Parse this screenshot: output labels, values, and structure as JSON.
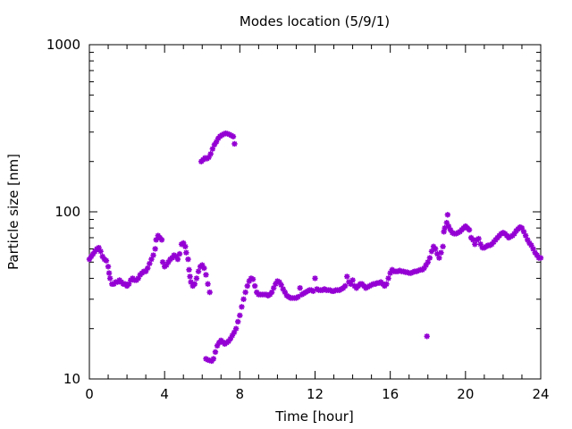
{
  "chart_data": {
    "type": "scatter",
    "title": "Modes location (5/9/1)",
    "xlabel": "Time [hour]",
    "ylabel": "Particle size [nm]",
    "xlim": [
      0,
      24
    ],
    "ylim": [
      10,
      1000
    ],
    "yscale": "log",
    "grid": false,
    "x_ticks": [
      0,
      4,
      8,
      12,
      16,
      20,
      24
    ],
    "x_tick_labels": [
      "0",
      "4",
      "8",
      "12",
      "16",
      "20",
      "24"
    ],
    "y_ticks": [
      10,
      100,
      1000
    ],
    "y_tick_labels": [
      "10",
      "100",
      "1000"
    ],
    "marker_color": "#9400d3",
    "series": [
      {
        "points": [
          [
            0.0,
            52
          ],
          [
            0.1,
            54
          ],
          [
            0.2,
            56
          ],
          [
            0.3,
            58
          ],
          [
            0.4,
            60
          ],
          [
            0.5,
            61
          ],
          [
            0.6,
            58
          ],
          [
            0.7,
            54
          ],
          [
            0.8,
            52
          ],
          [
            0.9,
            51
          ],
          [
            1.0,
            47
          ],
          [
            1.05,
            43
          ],
          [
            1.1,
            40
          ],
          [
            1.2,
            37
          ],
          [
            1.3,
            37
          ],
          [
            1.4,
            38
          ],
          [
            1.5,
            38
          ],
          [
            1.6,
            39
          ],
          [
            1.7,
            38
          ],
          [
            1.8,
            37
          ],
          [
            1.9,
            37
          ],
          [
            2.0,
            36
          ],
          [
            2.1,
            37
          ],
          [
            2.2,
            39
          ],
          [
            2.3,
            40
          ],
          [
            2.4,
            39
          ],
          [
            2.5,
            39
          ],
          [
            2.6,
            40
          ],
          [
            2.7,
            42
          ],
          [
            2.8,
            43
          ],
          [
            2.9,
            44
          ],
          [
            3.0,
            44
          ],
          [
            3.1,
            46
          ],
          [
            3.2,
            49
          ],
          [
            3.3,
            52
          ],
          [
            3.4,
            55
          ],
          [
            3.5,
            60
          ],
          [
            3.55,
            68
          ],
          [
            3.65,
            72
          ],
          [
            3.75,
            70
          ],
          [
            3.85,
            68
          ],
          [
            3.9,
            50
          ],
          [
            4.0,
            47
          ],
          [
            4.1,
            48
          ],
          [
            4.2,
            50
          ],
          [
            4.3,
            52
          ],
          [
            4.4,
            53
          ],
          [
            4.5,
            55
          ],
          [
            4.6,
            54
          ],
          [
            4.7,
            52
          ],
          [
            4.8,
            56
          ],
          [
            4.9,
            64
          ],
          [
            5.0,
            65
          ],
          [
            5.1,
            62
          ],
          [
            5.15,
            57
          ],
          [
            5.25,
            52
          ],
          [
            5.3,
            45
          ],
          [
            5.35,
            41
          ],
          [
            5.4,
            38
          ],
          [
            5.5,
            36
          ],
          [
            5.6,
            37
          ],
          [
            5.7,
            40
          ],
          [
            5.8,
            44
          ],
          [
            5.9,
            47
          ],
          [
            6.0,
            48
          ],
          [
            6.1,
            46
          ],
          [
            6.2,
            42
          ],
          [
            6.3,
            37
          ],
          [
            6.4,
            33
          ],
          [
            5.95,
            200
          ],
          [
            6.05,
            205
          ],
          [
            6.15,
            210
          ],
          [
            6.25,
            208
          ],
          [
            6.35,
            212
          ],
          [
            6.45,
            222
          ],
          [
            6.55,
            238
          ],
          [
            6.65,
            252
          ],
          [
            6.75,
            262
          ],
          [
            6.85,
            275
          ],
          [
            6.95,
            283
          ],
          [
            7.05,
            288
          ],
          [
            7.15,
            292
          ],
          [
            7.25,
            295
          ],
          [
            7.35,
            293
          ],
          [
            7.45,
            290
          ],
          [
            7.55,
            286
          ],
          [
            7.65,
            282
          ],
          [
            7.72,
            255
          ],
          [
            6.2,
            13.2
          ],
          [
            6.3,
            13.0
          ],
          [
            6.4,
            12.9
          ],
          [
            6.5,
            12.8
          ],
          [
            6.6,
            13.2
          ],
          [
            6.7,
            14.5
          ],
          [
            6.8,
            15.8
          ],
          [
            6.9,
            16.5
          ],
          [
            7.0,
            17.0
          ],
          [
            7.1,
            16.6
          ],
          [
            7.2,
            16.2
          ],
          [
            7.3,
            16.5
          ],
          [
            7.4,
            16.8
          ],
          [
            7.5,
            17.4
          ],
          [
            7.6,
            18.2
          ],
          [
            7.7,
            19.0
          ],
          [
            7.8,
            20.0
          ],
          [
            7.9,
            22.0
          ],
          [
            8.0,
            24.0
          ],
          [
            8.1,
            27.0
          ],
          [
            8.2,
            30.0
          ],
          [
            8.3,
            33.0
          ],
          [
            8.4,
            36.0
          ],
          [
            8.5,
            38.5
          ],
          [
            8.6,
            40.0
          ],
          [
            8.7,
            39.5
          ],
          [
            8.8,
            36.0
          ],
          [
            8.9,
            33.0
          ],
          [
            9.0,
            32.0
          ],
          [
            9.1,
            32.0
          ],
          [
            9.2,
            32.0
          ],
          [
            9.3,
            32.0
          ],
          [
            9.4,
            32.0
          ],
          [
            9.5,
            31.5
          ],
          [
            9.6,
            32.0
          ],
          [
            9.7,
            33.0
          ],
          [
            9.8,
            35.0
          ],
          [
            9.9,
            37.0
          ],
          [
            10.0,
            38.5
          ],
          [
            10.1,
            38.0
          ],
          [
            10.2,
            36.5
          ],
          [
            10.3,
            34.5
          ],
          [
            10.4,
            33.0
          ],
          [
            10.5,
            31.5
          ],
          [
            10.6,
            31.0
          ],
          [
            10.7,
            30.5
          ],
          [
            10.8,
            30.5
          ],
          [
            10.9,
            30.5
          ],
          [
            11.0,
            30.5
          ],
          [
            11.1,
            31.0
          ],
          [
            11.2,
            35.0
          ],
          [
            11.3,
            32.0
          ],
          [
            11.4,
            32.5
          ],
          [
            11.5,
            33.0
          ],
          [
            11.6,
            33.5
          ],
          [
            11.7,
            34.0
          ],
          [
            11.8,
            34.0
          ],
          [
            11.9,
            33.5
          ],
          [
            12.0,
            40.0
          ],
          [
            12.1,
            34.5
          ],
          [
            12.2,
            34.0
          ],
          [
            12.3,
            34.0
          ],
          [
            12.4,
            34.0
          ],
          [
            12.5,
            34.5
          ],
          [
            12.6,
            34.0
          ],
          [
            12.7,
            34.0
          ],
          [
            12.8,
            34.0
          ],
          [
            12.9,
            33.5
          ],
          [
            13.0,
            33.5
          ],
          [
            13.1,
            34.0
          ],
          [
            13.2,
            34.0
          ],
          [
            13.3,
            34.0
          ],
          [
            13.4,
            34.5
          ],
          [
            13.5,
            35.0
          ],
          [
            13.6,
            36.0
          ],
          [
            13.7,
            41.0
          ],
          [
            13.8,
            38.0
          ],
          [
            13.9,
            37.0
          ],
          [
            14.0,
            39.0
          ],
          [
            14.1,
            36.0
          ],
          [
            14.2,
            35.0
          ],
          [
            14.3,
            36.0
          ],
          [
            14.4,
            37.0
          ],
          [
            14.5,
            37.0
          ],
          [
            14.6,
            36.0
          ],
          [
            14.7,
            35.0
          ],
          [
            14.8,
            35.5
          ],
          [
            14.9,
            36.0
          ],
          [
            15.0,
            36.5
          ],
          [
            15.1,
            37.0
          ],
          [
            15.2,
            37.0
          ],
          [
            15.3,
            37.5
          ],
          [
            15.4,
            37.5
          ],
          [
            15.5,
            38.0
          ],
          [
            15.6,
            37.0
          ],
          [
            15.7,
            36.0
          ],
          [
            15.8,
            37.0
          ],
          [
            15.9,
            40.0
          ],
          [
            16.0,
            43.0
          ],
          [
            16.1,
            45.0
          ],
          [
            16.2,
            44.0
          ],
          [
            16.3,
            44.0
          ],
          [
            16.4,
            44.0
          ],
          [
            16.5,
            44.5
          ],
          [
            16.6,
            44.0
          ],
          [
            16.7,
            44.0
          ],
          [
            16.8,
            43.5
          ],
          [
            16.9,
            43.5
          ],
          [
            17.0,
            43.0
          ],
          [
            17.1,
            43.0
          ],
          [
            17.2,
            43.5
          ],
          [
            17.3,
            44.0
          ],
          [
            17.4,
            44.0
          ],
          [
            17.5,
            44.5
          ],
          [
            17.6,
            45.0
          ],
          [
            17.7,
            45.0
          ],
          [
            17.8,
            46.0
          ],
          [
            17.9,
            48.0
          ],
          [
            17.95,
            18.0
          ],
          [
            18.0,
            50.0
          ],
          [
            18.1,
            53.0
          ],
          [
            18.2,
            58.0
          ],
          [
            18.3,
            62.0
          ],
          [
            18.4,
            60.0
          ],
          [
            18.5,
            56.0
          ],
          [
            18.6,
            53.0
          ],
          [
            18.7,
            57.0
          ],
          [
            18.8,
            62.0
          ],
          [
            18.85,
            76.0
          ],
          [
            18.9,
            80.0
          ],
          [
            19.0,
            86.0
          ],
          [
            19.05,
            96.0
          ],
          [
            19.1,
            82.0
          ],
          [
            19.2,
            78.0
          ],
          [
            19.3,
            75.0
          ],
          [
            19.4,
            74.0
          ],
          [
            19.5,
            74.0
          ],
          [
            19.6,
            75.0
          ],
          [
            19.7,
            76.0
          ],
          [
            19.8,
            78.0
          ],
          [
            19.9,
            80.0
          ],
          [
            20.0,
            82.0
          ],
          [
            20.1,
            80.0
          ],
          [
            20.2,
            78.0
          ],
          [
            20.3,
            70.0
          ],
          [
            20.4,
            68.0
          ],
          [
            20.5,
            64.0
          ],
          [
            20.6,
            68.0
          ],
          [
            20.7,
            69.0
          ],
          [
            20.8,
            64.0
          ],
          [
            20.9,
            61.0
          ],
          [
            21.0,
            61.0
          ],
          [
            21.1,
            62.0
          ],
          [
            21.2,
            63.0
          ],
          [
            21.3,
            63.0
          ],
          [
            21.4,
            64.0
          ],
          [
            21.5,
            66.0
          ],
          [
            21.6,
            68.0
          ],
          [
            21.7,
            70.0
          ],
          [
            21.8,
            72.0
          ],
          [
            21.9,
            74.0
          ],
          [
            22.0,
            75.0
          ],
          [
            22.1,
            74.0
          ],
          [
            22.2,
            72.0
          ],
          [
            22.3,
            70.0
          ],
          [
            22.4,
            71.0
          ],
          [
            22.5,
            72.0
          ],
          [
            22.6,
            74.0
          ],
          [
            22.7,
            77.0
          ],
          [
            22.8,
            79.0
          ],
          [
            22.9,
            81.0
          ],
          [
            23.0,
            80.0
          ],
          [
            23.1,
            76.0
          ],
          [
            23.2,
            72.0
          ],
          [
            23.3,
            68.0
          ],
          [
            23.4,
            65.0
          ],
          [
            23.5,
            63.0
          ],
          [
            23.6,
            60.0
          ],
          [
            23.7,
            57.0
          ],
          [
            23.8,
            55.0
          ],
          [
            23.9,
            53.0
          ],
          [
            24.0,
            53.0
          ]
        ]
      }
    ]
  }
}
